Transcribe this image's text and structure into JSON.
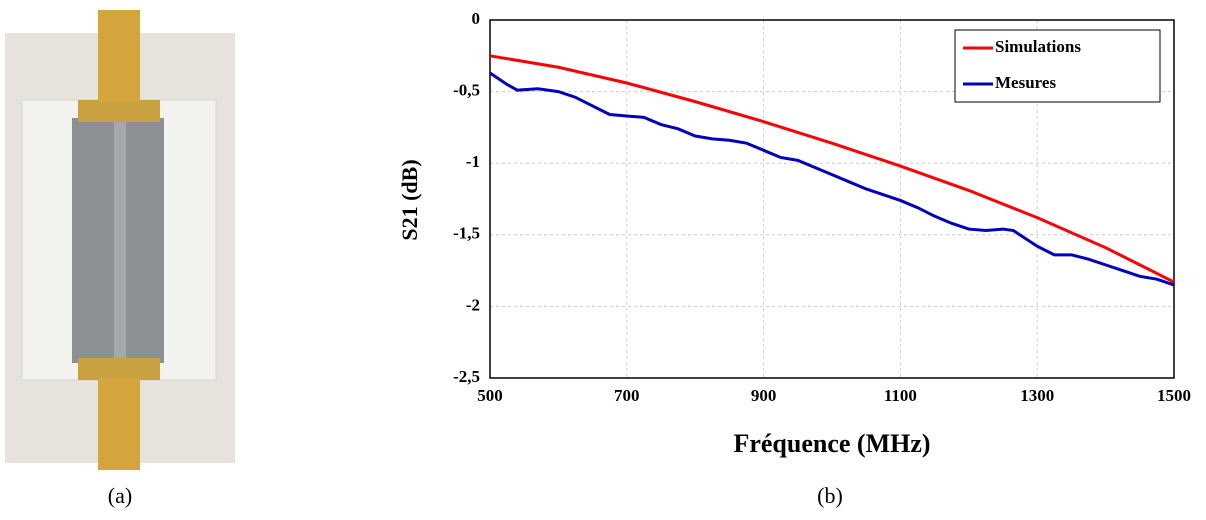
{
  "captions": [
    "(a)",
    "(b)"
  ],
  "chart_data": {
    "type": "line",
    "xlabel": "Fréquence (MHz)",
    "ylabel": "S21 (dB)",
    "xlim": [
      500,
      1500
    ],
    "xticks": [
      500,
      700,
      900,
      1100,
      1300,
      1500
    ],
    "ylim": [
      -2.5,
      0
    ],
    "yticks": [
      0,
      {
        "value": -0.5,
        "label": "-0,5"
      },
      -1,
      {
        "value": -1.5,
        "label": "-1,5"
      },
      -2,
      {
        "value": -2.5,
        "label": "-2,5"
      }
    ],
    "grid": true,
    "legend": "upper right",
    "series": [
      {
        "name": "Simulations",
        "color": "#ff0000",
        "x": [
          500,
          600,
          700,
          800,
          900,
          1000,
          1100,
          1200,
          1300,
          1400,
          1500
        ],
        "values": [
          -0.25,
          -0.33,
          -0.44,
          -0.57,
          -0.71,
          -0.86,
          -1.02,
          -1.19,
          -1.38,
          -1.59,
          -1.83
        ]
      },
      {
        "name": "Mesures",
        "color": "#0000c0",
        "x": [
          500,
          525,
          540,
          570,
          600,
          625,
          650,
          675,
          700,
          725,
          750,
          775,
          800,
          825,
          850,
          875,
          900,
          925,
          950,
          975,
          1000,
          1025,
          1050,
          1075,
          1100,
          1125,
          1150,
          1175,
          1200,
          1225,
          1250,
          1265,
          1300,
          1325,
          1350,
          1375,
          1400,
          1425,
          1450,
          1475,
          1500
        ],
        "values": [
          -0.37,
          -0.45,
          -0.49,
          -0.48,
          -0.5,
          -0.54,
          -0.6,
          -0.66,
          -0.67,
          -0.68,
          -0.73,
          -0.76,
          -0.81,
          -0.83,
          -0.84,
          -0.86,
          -0.91,
          -0.96,
          -0.98,
          -1.03,
          -1.08,
          -1.13,
          -1.18,
          -1.22,
          -1.26,
          -1.31,
          -1.37,
          -1.42,
          -1.46,
          -1.47,
          -1.46,
          -1.47,
          -1.58,
          -1.64,
          -1.64,
          -1.67,
          -1.71,
          -1.75,
          -1.79,
          -1.81,
          -1.85
        ]
      }
    ]
  }
}
